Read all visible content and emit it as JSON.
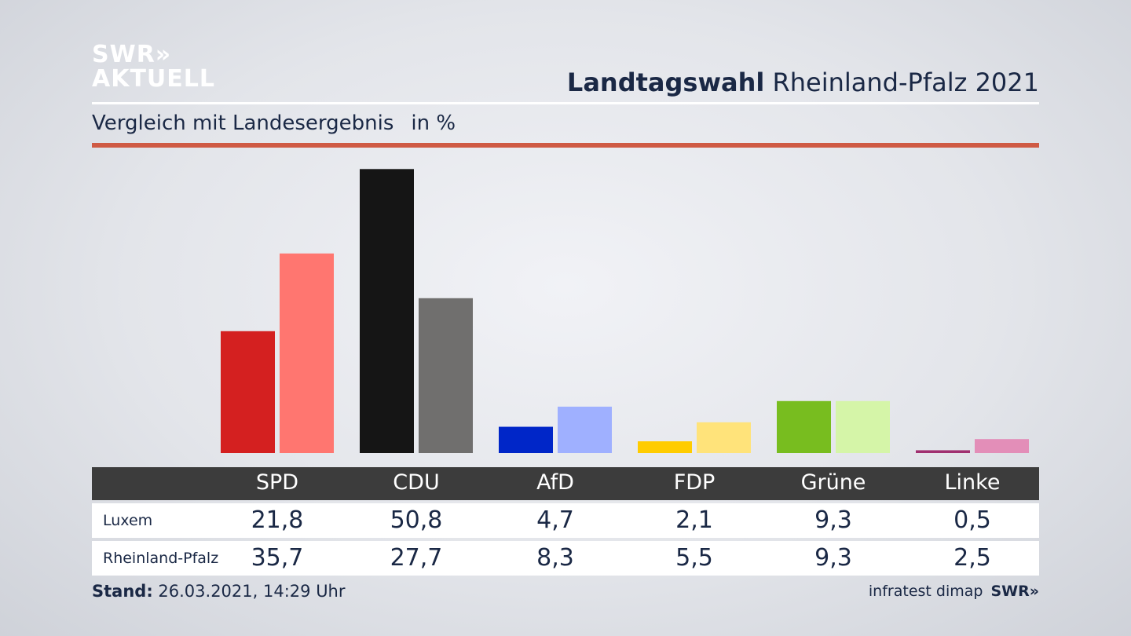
{
  "brand": {
    "logo_line1": "SWR»",
    "logo_line2": "AKTUELL",
    "footer_logo": "SWR»"
  },
  "header": {
    "title_bold": "Landtagswahl",
    "title_rest": "Rheinland-Pfalz 2021",
    "subtitle": "Vergleich mit Landesergebnis",
    "unit": "in %"
  },
  "colors": {
    "accent_rule": "#cf5a44",
    "table_header": "#3c3c3c"
  },
  "chart_data": {
    "type": "bar",
    "title": "Landtagswahl Rheinland-Pfalz 2021",
    "subtitle": "Vergleich mit Landesergebnis in %",
    "categories": [
      "SPD",
      "CDU",
      "AfD",
      "FDP",
      "Grüne",
      "Linke"
    ],
    "series": [
      {
        "name": "Luxem",
        "values": [
          21.8,
          50.8,
          4.7,
          2.1,
          9.3,
          0.5
        ],
        "display": [
          "21,8",
          "50,8",
          "4,7",
          "2,1",
          "9,3",
          "0,5"
        ],
        "colors": [
          "#d42020",
          "#151515",
          "#0026c8",
          "#ffcc00",
          "#78bd1f",
          "#a03070"
        ]
      },
      {
        "name": "Rheinland-Pfalz",
        "values": [
          35.7,
          27.7,
          8.3,
          5.5,
          9.3,
          2.5
        ],
        "display": [
          "35,7",
          "27,7",
          "8,3",
          "5,5",
          "9,3",
          "2,5"
        ],
        "colors": [
          "#ff7670",
          "#706f6e",
          "#9fb0ff",
          "#ffe37a",
          "#d5f5a8",
          "#e38eb8"
        ]
      }
    ],
    "ylim": [
      0,
      51
    ],
    "grid": false,
    "legend": "table-bottom"
  },
  "footer": {
    "stand_label": "Stand:",
    "stand_value": "26.03.2021, 14:29 Uhr",
    "source": "infratest dimap"
  }
}
